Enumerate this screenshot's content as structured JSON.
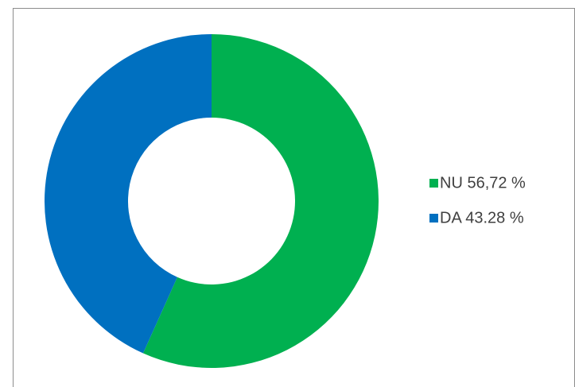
{
  "chart_data": {
    "type": "donut",
    "categories": [
      "NU 56,72 %",
      "DA 43.28 %"
    ],
    "values": [
      56.72,
      43.28
    ],
    "colors": [
      "#00b050",
      "#0070c0"
    ],
    "legend": "right"
  }
}
